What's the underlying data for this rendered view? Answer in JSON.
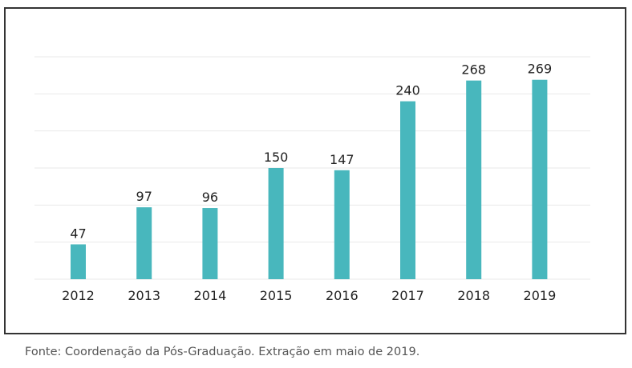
{
  "chart_data": {
    "type": "bar",
    "categories": [
      "2012",
      "2013",
      "2014",
      "2015",
      "2016",
      "2017",
      "2018",
      "2019"
    ],
    "values": [
      47,
      97,
      96,
      150,
      147,
      240,
      268,
      269
    ],
    "title": "",
    "xlabel": "",
    "ylabel": "",
    "ylim": [
      0,
      300
    ],
    "grid": true,
    "bar_color": "#48b7bd",
    "grid_color": "#e8e8e8"
  },
  "source_note": "Fonte: Coordenação da Pós-Graduação. Extração em maio de 2019."
}
